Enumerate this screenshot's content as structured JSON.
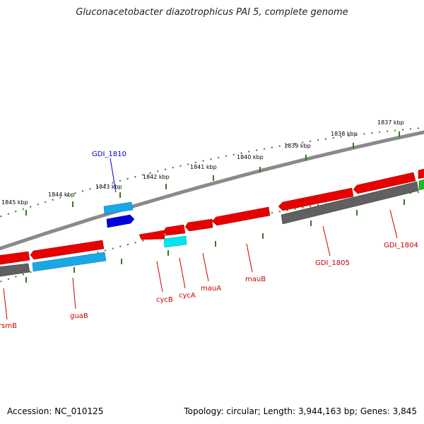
{
  "title": "Gluconacetobacter diazotrophicus PAI 5, complete genome",
  "footer": {
    "accession": "Accession: NC_010125",
    "summary": "Topology: circular; Length: 3,944,163 bp; Genes: 3,845"
  },
  "colors": {
    "backbone": "#8a8a8a",
    "scale": "#2e7d1f",
    "label_red": "#c80000",
    "label_blue": "#0000cc",
    "forward_gene": "#e80000",
    "reverse_gene": "#e80000",
    "cds_light_blue": "#1aa7e6",
    "cds_blue": "#0000dd",
    "cds_cyan": "#00e5ee",
    "cds_gray": "#606060",
    "cds_pink": "#f07070",
    "cds_green": "#22bb22"
  },
  "scale_labels": [
    "1845 kbp",
    "1844 kbp",
    "1843 kbp",
    "1842 kbp",
    "1841 kbp",
    "1840 kbp",
    "1839 kbp",
    "1838 kbp",
    "1837 kbp"
  ],
  "gene_labels": {
    "outer": [
      "GDI_1810"
    ],
    "inner": [
      "rsmB",
      "guaB",
      "cycB",
      "cycA",
      "mauA",
      "mauB",
      "GDI_1805",
      "GDI_1804"
    ]
  }
}
